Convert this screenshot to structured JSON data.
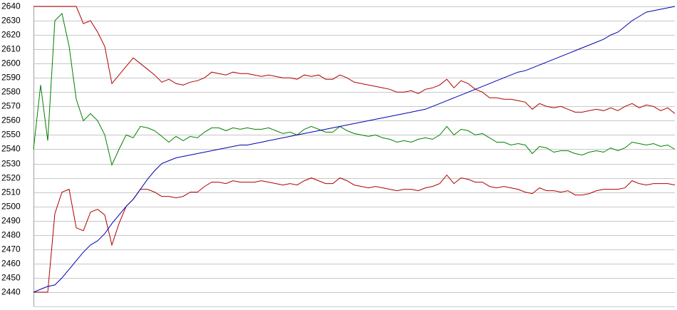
{
  "chart_data": {
    "type": "line",
    "ylim": [
      2430,
      2640
    ],
    "yticks": [
      2440,
      2450,
      2460,
      2470,
      2480,
      2490,
      2500,
      2510,
      2520,
      2530,
      2540,
      2550,
      2560,
      2570,
      2580,
      2590,
      2600,
      2610,
      2620,
      2630,
      2640
    ],
    "grid": true,
    "series": [
      {
        "color": "#008000",
        "values": [
          2540,
          2585,
          2546,
          2630,
          2635,
          2612,
          2575,
          2560,
          2565,
          2560,
          2550,
          2529,
          2540,
          2550,
          2548,
          2556,
          2555,
          2553,
          2549,
          2545,
          2549,
          2546,
          2549,
          2548,
          2552,
          2555,
          2555,
          2553,
          2555,
          2554,
          2555,
          2554,
          2554,
          2555,
          2553,
          2551,
          2552,
          2550,
          2554,
          2556,
          2554,
          2552,
          2552,
          2556,
          2553,
          2551,
          2550,
          2549,
          2550,
          2548,
          2547,
          2545,
          2546,
          2545,
          2547,
          2548,
          2547,
          2550,
          2556,
          2550,
          2554,
          2553,
          2550,
          2551,
          2548,
          2545,
          2545,
          2543,
          2544,
          2543,
          2537,
          2542,
          2541,
          2538,
          2539,
          2539,
          2537,
          2536,
          2538,
          2539,
          2538,
          2541,
          2539,
          2541,
          2545,
          2544,
          2543,
          2544,
          2542,
          2543,
          2540
        ]
      },
      {
        "color": "#b00000",
        "values": [
          2640,
          2640,
          2640,
          2640,
          2640,
          2640,
          2640,
          2628,
          2630,
          2622,
          2612,
          2586,
          2592,
          2598,
          2604,
          2600,
          2596,
          2592,
          2587,
          2589,
          2586,
          2585,
          2587,
          2588,
          2590,
          2594,
          2593,
          2592,
          2594,
          2593,
          2593,
          2592,
          2591,
          2592,
          2591,
          2590,
          2590,
          2589,
          2592,
          2591,
          2592,
          2589,
          2589,
          2592,
          2590,
          2587,
          2586,
          2585,
          2584,
          2583,
          2582,
          2580,
          2580,
          2581,
          2579,
          2582,
          2583,
          2585,
          2589,
          2583,
          2588,
          2586,
          2582,
          2580,
          2576,
          2576,
          2575,
          2575,
          2574,
          2573,
          2568,
          2572,
          2570,
          2569,
          2570,
          2568,
          2566,
          2566,
          2567,
          2568,
          2567,
          2569,
          2567,
          2570,
          2572,
          2569,
          2571,
          2570,
          2567,
          2569,
          2565
        ]
      },
      {
        "color": "#b00000",
        "values": [
          2440,
          2440,
          2440,
          2495,
          2510,
          2512,
          2485,
          2483,
          2496,
          2498,
          2494,
          2473,
          2488,
          2500,
          2505,
          2512,
          2512,
          2510,
          2507,
          2507,
          2506,
          2507,
          2510,
          2510,
          2514,
          2517,
          2517,
          2516,
          2518,
          2517,
          2517,
          2517,
          2518,
          2517,
          2516,
          2515,
          2516,
          2515,
          2518,
          2520,
          2518,
          2516,
          2516,
          2520,
          2518,
          2515,
          2514,
          2513,
          2514,
          2513,
          2512,
          2511,
          2512,
          2512,
          2511,
          2513,
          2514,
          2516,
          2522,
          2516,
          2520,
          2519,
          2517,
          2517,
          2514,
          2513,
          2514,
          2513,
          2512,
          2510,
          2509,
          2513,
          2511,
          2511,
          2510,
          2511,
          2508,
          2508,
          2509,
          2511,
          2512,
          2512,
          2512,
          2513,
          2518,
          2516,
          2515,
          2516,
          2516,
          2516,
          2515
        ]
      },
      {
        "color": "#0000b0",
        "values": [
          2440,
          2442,
          2444,
          2445,
          2450,
          2456,
          2462,
          2468,
          2473,
          2476,
          2481,
          2488,
          2494,
          2500,
          2505,
          2512,
          2519,
          2525,
          2530,
          2532,
          2534,
          2535,
          2536,
          2537,
          2538,
          2539,
          2540,
          2541,
          2542,
          2543,
          2543,
          2544,
          2545,
          2546,
          2547,
          2548,
          2549,
          2550,
          2551,
          2552,
          2553,
          2554,
          2555,
          2556,
          2557,
          2558,
          2559,
          2560,
          2561,
          2562,
          2563,
          2564,
          2565,
          2566,
          2567,
          2568,
          2570,
          2572,
          2574,
          2576,
          2578,
          2580,
          2582,
          2584,
          2586,
          2588,
          2590,
          2592,
          2594,
          2595,
          2597,
          2599,
          2601,
          2603,
          2605,
          2607,
          2609,
          2611,
          2613,
          2615,
          2617,
          2620,
          2622,
          2626,
          2630,
          2633,
          2636,
          2637,
          2638,
          2639,
          2640
        ]
      }
    ]
  }
}
